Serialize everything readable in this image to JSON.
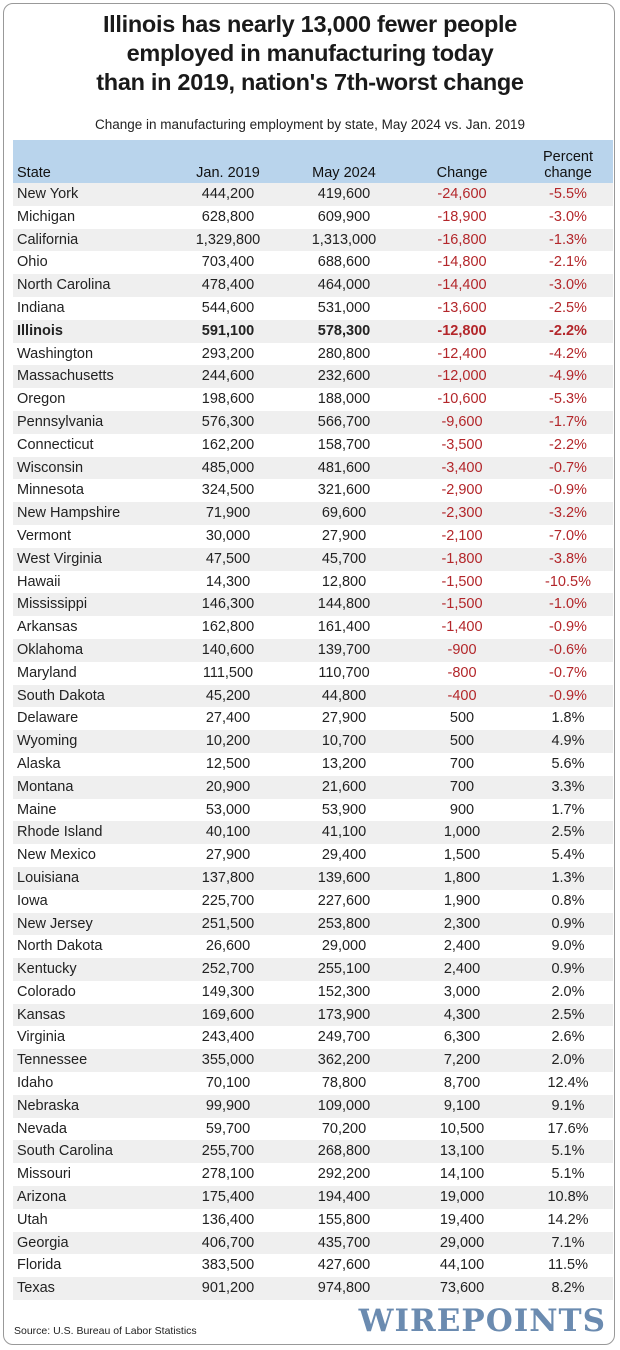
{
  "chart_data": {
    "type": "table",
    "title": [
      "Illinois has nearly 13,000 fewer people",
      "employed in manufacturing today",
      "than in 2019, nation's 7th-worst change"
    ],
    "subtitle": "Change in manufacturing employment by state, May 2024 vs. Jan. 2019",
    "columns": [
      "State",
      "Jan. 2019",
      "May 2024",
      "Change",
      "Percent change"
    ],
    "highlight_row": "Illinois",
    "negative_color": "#b3262a",
    "header_color": "#b9d4ec",
    "rows": [
      [
        "New York",
        "444,200",
        "419,600",
        "-24,600",
        "-5.5%"
      ],
      [
        "Michigan",
        "628,800",
        "609,900",
        "-18,900",
        "-3.0%"
      ],
      [
        "California",
        "1,329,800",
        "1,313,000",
        "-16,800",
        "-1.3%"
      ],
      [
        "Ohio",
        "703,400",
        "688,600",
        "-14,800",
        "-2.1%"
      ],
      [
        "North Carolina",
        "478,400",
        "464,000",
        "-14,400",
        "-3.0%"
      ],
      [
        "Indiana",
        "544,600",
        "531,000",
        "-13,600",
        "-2.5%"
      ],
      [
        "Illinois",
        "591,100",
        "578,300",
        "-12,800",
        "-2.2%"
      ],
      [
        "Washington",
        "293,200",
        "280,800",
        "-12,400",
        "-4.2%"
      ],
      [
        "Massachusetts",
        "244,600",
        "232,600",
        "-12,000",
        "-4.9%"
      ],
      [
        "Oregon",
        "198,600",
        "188,000",
        "-10,600",
        "-5.3%"
      ],
      [
        "Pennsylvania",
        "576,300",
        "566,700",
        "-9,600",
        "-1.7%"
      ],
      [
        "Connecticut",
        "162,200",
        "158,700",
        "-3,500",
        "-2.2%"
      ],
      [
        "Wisconsin",
        "485,000",
        "481,600",
        "-3,400",
        "-0.7%"
      ],
      [
        "Minnesota",
        "324,500",
        "321,600",
        "-2,900",
        "-0.9%"
      ],
      [
        "New Hampshire",
        "71,900",
        "69,600",
        "-2,300",
        "-3.2%"
      ],
      [
        "Vermont",
        "30,000",
        "27,900",
        "-2,100",
        "-7.0%"
      ],
      [
        "West Virginia",
        "47,500",
        "45,700",
        "-1,800",
        "-3.8%"
      ],
      [
        "Hawaii",
        "14,300",
        "12,800",
        "-1,500",
        "-10.5%"
      ],
      [
        "Mississippi",
        "146,300",
        "144,800",
        "-1,500",
        "-1.0%"
      ],
      [
        "Arkansas",
        "162,800",
        "161,400",
        "-1,400",
        "-0.9%"
      ],
      [
        "Oklahoma",
        "140,600",
        "139,700",
        "-900",
        "-0.6%"
      ],
      [
        "Maryland",
        "111,500",
        "110,700",
        "-800",
        "-0.7%"
      ],
      [
        "South Dakota",
        "45,200",
        "44,800",
        "-400",
        "-0.9%"
      ],
      [
        "Delaware",
        "27,400",
        "27,900",
        "500",
        "1.8%"
      ],
      [
        "Wyoming",
        "10,200",
        "10,700",
        "500",
        "4.9%"
      ],
      [
        "Alaska",
        "12,500",
        "13,200",
        "700",
        "5.6%"
      ],
      [
        "Montana",
        "20,900",
        "21,600",
        "700",
        "3.3%"
      ],
      [
        "Maine",
        "53,000",
        "53,900",
        "900",
        "1.7%"
      ],
      [
        "Rhode Island",
        "40,100",
        "41,100",
        "1,000",
        "2.5%"
      ],
      [
        "New Mexico",
        "27,900",
        "29,400",
        "1,500",
        "5.4%"
      ],
      [
        "Louisiana",
        "137,800",
        "139,600",
        "1,800",
        "1.3%"
      ],
      [
        "Iowa",
        "225,700",
        "227,600",
        "1,900",
        "0.8%"
      ],
      [
        "New Jersey",
        "251,500",
        "253,800",
        "2,300",
        "0.9%"
      ],
      [
        "North Dakota",
        "26,600",
        "29,000",
        "2,400",
        "9.0%"
      ],
      [
        "Kentucky",
        "252,700",
        "255,100",
        "2,400",
        "0.9%"
      ],
      [
        "Colorado",
        "149,300",
        "152,300",
        "3,000",
        "2.0%"
      ],
      [
        "Kansas",
        "169,600",
        "173,900",
        "4,300",
        "2.5%"
      ],
      [
        "Virginia",
        "243,400",
        "249,700",
        "6,300",
        "2.6%"
      ],
      [
        "Tennessee",
        "355,000",
        "362,200",
        "7,200",
        "2.0%"
      ],
      [
        "Idaho",
        "70,100",
        "78,800",
        "8,700",
        "12.4%"
      ],
      [
        "Nebraska",
        "99,900",
        "109,000",
        "9,100",
        "9.1%"
      ],
      [
        "Nevada",
        "59,700",
        "70,200",
        "10,500",
        "17.6%"
      ],
      [
        "South Carolina",
        "255,700",
        "268,800",
        "13,100",
        "5.1%"
      ],
      [
        "Missouri",
        "278,100",
        "292,200",
        "14,100",
        "5.1%"
      ],
      [
        "Arizona",
        "175,400",
        "194,400",
        "19,000",
        "10.8%"
      ],
      [
        "Utah",
        "136,400",
        "155,800",
        "19,400",
        "14.2%"
      ],
      [
        "Georgia",
        "406,700",
        "435,700",
        "29,000",
        "7.1%"
      ],
      [
        "Florida",
        "383,500",
        "427,600",
        "44,100",
        "11.5%"
      ],
      [
        "Texas",
        "901,200",
        "974,800",
        "73,600",
        "8.2%"
      ]
    ],
    "source": "Source: U.S. Bureau of Labor Statistics",
    "logo": "WIREPOINTS"
  }
}
